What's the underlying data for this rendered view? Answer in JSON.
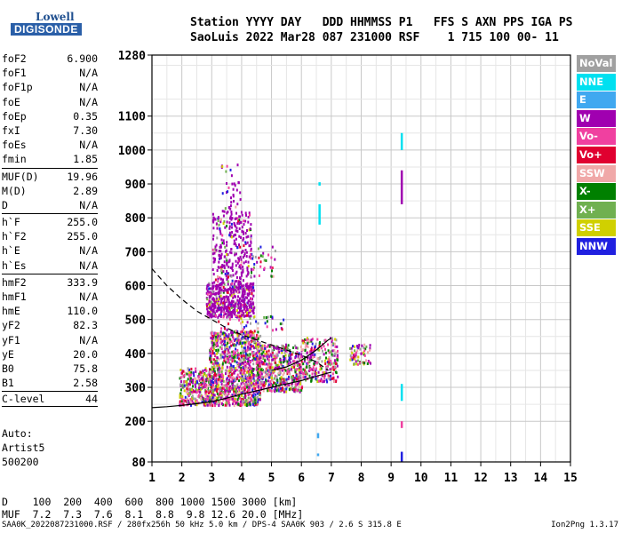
{
  "logo": {
    "line1": "Lowell",
    "line2": "DIGISONDE"
  },
  "header": {
    "line1": "Station YYYY DAY   DDD HHMMSS P1   FFS S AXN PPS IGA PS",
    "line2": "SaoLuis 2022 Mar28 087 231000 RSF    1 715 100 00- 11"
  },
  "params": [
    [
      {
        "k": "foF2",
        "v": "6.900"
      },
      {
        "k": "foF1",
        "v": "N/A"
      },
      {
        "k": "foF1p",
        "v": "N/A"
      },
      {
        "k": "foE",
        "v": "N/A"
      },
      {
        "k": "foEp",
        "v": "0.35"
      },
      {
        "k": "fxI",
        "v": "7.30"
      },
      {
        "k": "foEs",
        "v": "N/A"
      },
      {
        "k": "fmin",
        "v": "1.85"
      }
    ],
    [
      {
        "k": "MUF(D)",
        "v": "19.96"
      },
      {
        "k": "M(D)",
        "v": "2.89"
      },
      {
        "k": "D",
        "v": "N/A"
      }
    ],
    [
      {
        "k": "h`F",
        "v": "255.0"
      },
      {
        "k": "h`F2",
        "v": "255.0"
      },
      {
        "k": "h`E",
        "v": "N/A"
      },
      {
        "k": "h`Es",
        "v": "N/A"
      }
    ],
    [
      {
        "k": "hmF2",
        "v": "333.9"
      },
      {
        "k": "hmF1",
        "v": "N/A"
      },
      {
        "k": "hmE",
        "v": "110.0"
      },
      {
        "k": "yF2",
        "v": "82.3"
      },
      {
        "k": "yF1",
        "v": "N/A"
      },
      {
        "k": "yE",
        "v": "20.0"
      },
      {
        "k": "B0",
        "v": "75.8"
      },
      {
        "k": "B1",
        "v": "2.58"
      }
    ]
  ],
  "clevel": {
    "label": "C-level",
    "value": "44"
  },
  "auto": {
    "line1": "Auto:",
    "line2": "Artist5",
    "line3": "500200"
  },
  "legend": [
    {
      "label": "NoVal",
      "color": "#a0a0a0"
    },
    {
      "label": "NNE",
      "color": "#00e0f0"
    },
    {
      "label": "E",
      "color": "#40a8f0"
    },
    {
      "label": "W",
      "color": "#a000b0"
    },
    {
      "label": "Vo-",
      "color": "#f040a0"
    },
    {
      "label": "Vo+",
      "color": "#e00030"
    },
    {
      "label": "SSW",
      "color": "#f0a8a8"
    },
    {
      "label": "X-",
      "color": "#008000"
    },
    {
      "label": "X+",
      "color": "#70b050"
    },
    {
      "label": "SSE",
      "color": "#d0d000"
    },
    {
      "label": "NNW",
      "color": "#2020e0"
    }
  ],
  "dmuf": {
    "line1": "D    100  200  400  600  800 1000 1500 3000 [km]",
    "line2": "MUF  7.2  7.3  7.6  8.1  8.8  9.8 12.6 20.0 [MHz]"
  },
  "footer": {
    "left": "SAA0K_2022087231000.RSF / 280fx256h 50 kHz 5.0 km / DPS-4 SAA0K 903 / 2.6 S 315.8 E",
    "right": "Ion2Png 1.3.17"
  },
  "chart_data": {
    "type": "scatter",
    "xlim": [
      1,
      15
    ],
    "ylim": [
      80,
      1280
    ],
    "xticks": [
      1,
      2,
      3,
      4,
      5,
      6,
      7,
      8,
      9,
      10,
      11,
      12,
      13,
      14,
      15
    ],
    "yticks": [
      80,
      200,
      300,
      400,
      500,
      600,
      700,
      800,
      900,
      1000,
      1100,
      1280
    ],
    "grid": true,
    "clusters": [
      {
        "x": [
          1.9,
          3.0
        ],
        "y": [
          250,
          360
        ],
        "n": 320
      },
      {
        "x": [
          2.9,
          4.6
        ],
        "y": [
          250,
          470
        ],
        "n": 1100
      },
      {
        "x": [
          4.5,
          6.0
        ],
        "y": [
          290,
          430
        ],
        "n": 520
      },
      {
        "x": [
          6.0,
          7.2
        ],
        "y": [
          320,
          450
        ],
        "n": 260
      },
      {
        "x": [
          7.6,
          8.3
        ],
        "y": [
          370,
          430
        ],
        "n": 70
      },
      {
        "x": [
          2.8,
          4.4
        ],
        "y": [
          510,
          610
        ],
        "n": 460
      },
      {
        "x": [
          3.0,
          4.3
        ],
        "y": [
          590,
          820
        ],
        "n": 320
      },
      {
        "x": [
          3.3,
          4.0
        ],
        "y": [
          820,
          970
        ],
        "n": 40
      },
      {
        "x": [
          4.2,
          5.1
        ],
        "y": [
          630,
          720
        ],
        "n": 40
      },
      {
        "x": [
          3.0,
          5.5
        ],
        "y": [
          470,
          520
        ],
        "n": 40
      }
    ],
    "vertical_marks": [
      {
        "x": 6.6,
        "y": [
          780,
          840
        ],
        "series": "NNE"
      },
      {
        "x": 6.6,
        "y": [
          895,
          905
        ],
        "series": "NNE"
      },
      {
        "x": 6.55,
        "y": [
          150,
          165
        ],
        "series": "E"
      },
      {
        "x": 6.55,
        "y": [
          100,
          105
        ],
        "series": "E"
      },
      {
        "x": 9.35,
        "y": [
          1000,
          1050
        ],
        "series": "NNE"
      },
      {
        "x": 9.35,
        "y": [
          260,
          310
        ],
        "series": "NNE"
      },
      {
        "x": 9.35,
        "y": [
          840,
          940
        ],
        "series": "W"
      },
      {
        "x": 9.35,
        "y": [
          180,
          200
        ],
        "series": "Vo-"
      },
      {
        "x": 9.35,
        "y": [
          80,
          110
        ],
        "series": "NNW"
      }
    ],
    "curves": {
      "o_trace": {
        "x": [
          1.0,
          1.5,
          2.0,
          2.5,
          3.0,
          3.5,
          4.0,
          4.5,
          5.0,
          5.5,
          6.0,
          6.5,
          7.0
        ],
        "y": [
          240,
          243,
          247,
          252,
          258,
          268,
          280,
          290,
          300,
          310,
          320,
          333,
          345
        ]
      },
      "x_trace": {
        "x": [
          5.0,
          5.5,
          6.0,
          6.5,
          6.9,
          7.0
        ],
        "y": [
          350,
          360,
          380,
          410,
          440,
          445
        ]
      },
      "profile": {
        "x": [
          1.0,
          1.5,
          2.0,
          2.5,
          3.0,
          3.5,
          4.0,
          4.5,
          5.0,
          5.5,
          6.0,
          6.5,
          6.9
        ],
        "y": [
          650,
          600,
          560,
          525,
          500,
          475,
          455,
          440,
          425,
          410,
          395,
          375,
          350
        ]
      }
    }
  }
}
